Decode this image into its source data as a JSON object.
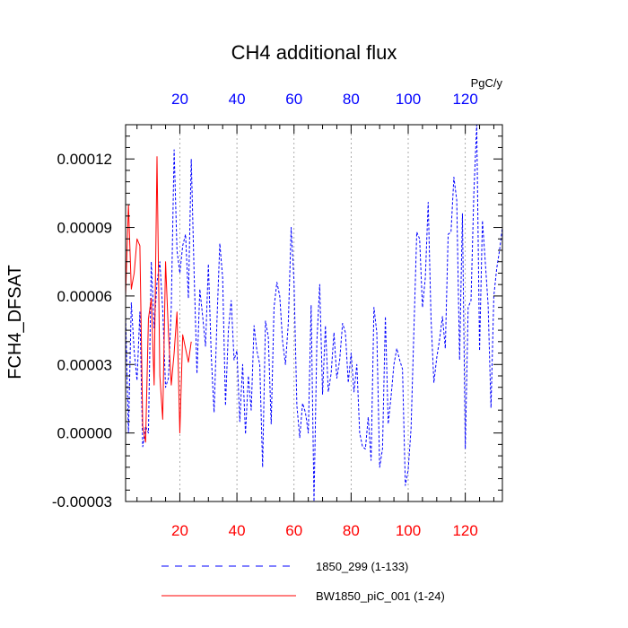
{
  "chart_data": {
    "type": "line",
    "title": "CH4 additional flux",
    "ylabel": "FCH4_DFSAT",
    "units": "PgC/y",
    "xlim": [
      1,
      133
    ],
    "ylim": [
      -3e-05,
      0.000135
    ],
    "grid": "vertical",
    "yticks": [
      {
        "value": -3e-05,
        "label": "-0.00003"
      },
      {
        "value": 0.0,
        "label": "0.00000"
      },
      {
        "value": 3e-05,
        "label": "0.00003"
      },
      {
        "value": 6e-05,
        "label": "0.00006"
      },
      {
        "value": 9e-05,
        "label": "0.00009"
      },
      {
        "value": 0.00012,
        "label": "0.00012"
      }
    ],
    "xticks_bottom": [
      {
        "value": 20,
        "label": "20"
      },
      {
        "value": 40,
        "label": "40"
      },
      {
        "value": 60,
        "label": "60"
      },
      {
        "value": 80,
        "label": "80"
      },
      {
        "value": 100,
        "label": "100"
      },
      {
        "value": 120,
        "label": "120"
      }
    ],
    "xticks_top": [
      {
        "value": 20,
        "label": "20"
      },
      {
        "value": 40,
        "label": "40"
      },
      {
        "value": 60,
        "label": "60"
      },
      {
        "value": 80,
        "label": "80"
      },
      {
        "value": 100,
        "label": "100"
      },
      {
        "value": 120,
        "label": "120"
      }
    ],
    "series": [
      {
        "name": "1850_299 (1-133)",
        "color": "#0000ff",
        "style": "dashed",
        "x_start": 1,
        "values": [
          5.2e-05,
          0.0,
          5.7e-05,
          3.6e-05,
          2.3e-05,
          5.3e-05,
          -6e-06,
          3e-06,
          0.0,
          7.5e-05,
          4.6e-05,
          6.6e-05,
          7.5e-05,
          5.4e-05,
          2e-05,
          2.4e-05,
          5.5e-05,
          0.000124,
          8e-05,
          7e-05,
          8.2e-05,
          8.7e-05,
          5.9e-05,
          0.00012,
          7e-05,
          2.6e-05,
          6.3e-05,
          5.1e-05,
          3.8e-05,
          7.4e-05,
          3.4e-05,
          9e-06,
          4.9e-05,
          8.3e-05,
          6.8e-05,
          1.2e-05,
          4.5e-05,
          5.8e-05,
          3.2e-05,
          3.6e-05,
          5e-06,
          3e-05,
          -5e-07,
          2.5e-05,
          1e-05,
          4.7e-05,
          3.6e-05,
          3e-05,
          -1.5e-05,
          4.9e-05,
          4.2e-05,
          4e-06,
          5.5e-05,
          6.6e-05,
          6e-05,
          4e-05,
          3e-05,
          4.8e-05,
          9e-05,
          6.6e-05,
          1.2e-05,
          -2e-06,
          1.3e-05,
          9e-06,
          0.0,
          5.6e-05,
          -3e-05,
          4e-05,
          6.5e-05,
          1.7e-05,
          4.7e-05,
          1.8e-05,
          2.6e-05,
          4.4e-05,
          2.4e-05,
          3.2e-05,
          4.8e-05,
          4.4e-05,
          2.2e-05,
          3.5e-05,
          1.8e-05,
          3e-05,
          0.0,
          -6e-06,
          -7e-06,
          7e-06,
          -1.2e-05,
          5.5e-05,
          4.4e-05,
          -1.5e-05,
          -7e-06,
          5.1e-05,
          4e-06,
          1.6e-05,
          3e-05,
          3.7e-05,
          3.2e-05,
          2.8e-05,
          -2.3e-05,
          -1.6e-05,
          2e-06,
          4.5e-05,
          8.8e-05,
          8.5e-05,
          5.5e-05,
          6.8e-05,
          0.000101,
          5e-05,
          2.2e-05,
          3.3e-05,
          4.1e-05,
          5.1e-05,
          3.7e-05,
          8.7e-05,
          8.8e-05,
          0.000112,
          0.000102,
          3.2e-05,
          9.6e-05,
          -7e-06,
          5.5e-05,
          5.8e-05,
          0.000105,
          0.000135,
          3.6e-05,
          9.3e-05,
          7.5e-05,
          5.6e-05,
          1.1e-05,
          6e-05,
          7.2e-05,
          8e-05,
          9e-05
        ]
      },
      {
        "name": "BW1850_piC_001 (1-24)",
        "color": "#ff0000",
        "style": "solid",
        "x_start": 1,
        "values": [
          6e-05,
          0.0001,
          6.3e-05,
          7e-05,
          8.5e-05,
          8.2e-05,
          3e-06,
          -4e-06,
          5e-05,
          5.9e-05,
          2.1e-05,
          0.000121,
          2.5e-05,
          6e-06,
          7.5e-05,
          4.4e-05,
          2.1e-05,
          3.5e-05,
          5.3e-05,
          0.0,
          4.3e-05,
          3.7e-05,
          3.1e-05,
          4e-05
        ]
      }
    ],
    "legend_position": "bottom"
  }
}
